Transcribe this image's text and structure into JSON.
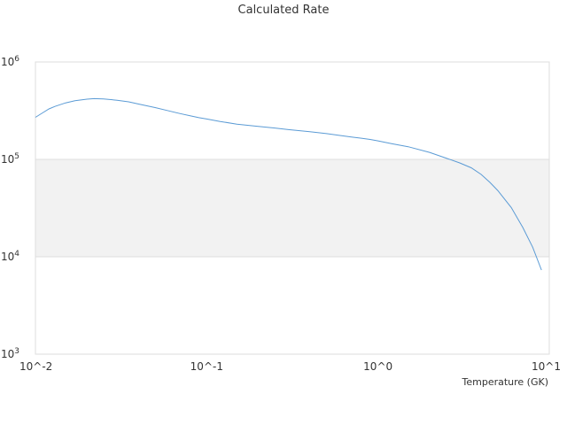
{
  "chart_data": {
    "type": "line",
    "title": "Calculated Rate",
    "xlabel": "Temperature (GK)",
    "ylabel": "",
    "xscale": "log",
    "yscale": "log",
    "xlim": [
      0.01,
      10
    ],
    "ylim": [
      1000,
      1000000
    ],
    "grid": true,
    "alternating_bands": true,
    "band_color": "#f2f2f2",
    "line_color": "#5b9bd5",
    "x_tick_labels": [
      "10^-2",
      "10^-1",
      "10^0",
      "10^1"
    ],
    "y_tick_labels": [
      {
        "base": "10",
        "exp": "3"
      },
      {
        "base": "10",
        "exp": "4"
      },
      {
        "base": "10",
        "exp": "5"
      },
      {
        "base": "10",
        "exp": "6"
      }
    ],
    "series": [
      {
        "x": [
          0.01,
          0.011,
          0.012,
          0.013,
          0.015,
          0.017,
          0.02,
          0.022,
          0.025,
          0.03,
          0.035,
          0.04,
          0.05,
          0.06,
          0.07,
          0.08,
          0.09,
          0.1,
          0.12,
          0.15,
          0.2,
          0.25,
          0.3,
          0.4,
          0.5,
          0.6,
          0.7,
          0.8,
          0.9,
          1.0,
          1.2,
          1.5,
          2.0,
          2.5,
          3.0,
          3.5,
          4.0,
          4.5,
          5.0,
          6.0,
          7.0,
          8.0,
          9.0
        ],
        "y": [
          270000,
          300000,
          330000,
          350000,
          380000,
          400000,
          415000,
          420000,
          418000,
          405000,
          390000,
          370000,
          340000,
          315000,
          295000,
          280000,
          268000,
          260000,
          245000,
          230000,
          218000,
          210000,
          202000,
          192000,
          184000,
          176000,
          170000,
          165000,
          160000,
          155000,
          145000,
          135000,
          118000,
          103000,
          92000,
          82000,
          70000,
          58000,
          48000,
          32000,
          20000,
          12500,
          7300
        ]
      }
    ]
  }
}
